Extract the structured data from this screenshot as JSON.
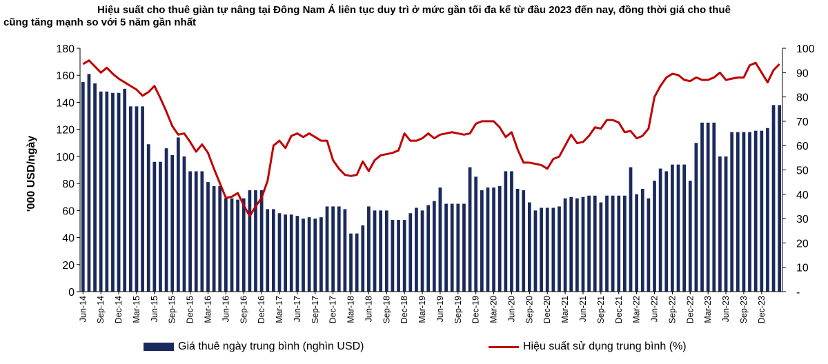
{
  "title": {
    "line1": "Hiệu suất cho thuê giàn tự nâng tại Đông Nam Á liên tục duy trì ở mức gần tối đa kể từ đầu 2023 đến nay, đồng thời giá cho thuê",
    "line2": "cũng tăng mạnh so với 5 năm gần nhất"
  },
  "chart_data": {
    "type": "bar",
    "title": "Hiệu suất cho thuê giàn tự nâng tại Đông Nam Á liên tục duy trì ở mức gần tối đa kể từ đầu 2023 đến nay, đồng thời giá cho thuê cũng tăng mạnh so với 5 năm gần nhất",
    "ylabel": "'000 USD/ngày",
    "ylim": [
      0,
      180
    ],
    "y_ticks": [
      "0",
      "20",
      "40",
      "60",
      "80",
      "100",
      "120",
      "140",
      "160",
      "180"
    ],
    "y2lim": [
      0,
      100
    ],
    "y2_ticks": [
      "-",
      "10",
      "20",
      "30",
      "40",
      "50",
      "60",
      "70",
      "80",
      "90",
      "100"
    ],
    "x_ticks": [
      "Jun-14",
      "Sep-14",
      "Dec-14",
      "Mar-15",
      "Jun-15",
      "Sep-15",
      "Dec-15",
      "Mar-16",
      "Jun-16",
      "Sep-16",
      "Dec-16",
      "Mar-17",
      "Jun-17",
      "Sep-17",
      "Dec-17",
      "Mar-18",
      "Jun-18",
      "Sep-18",
      "Dec-18",
      "Mar-19",
      "Jun-19",
      "Sep-19",
      "Dec-19",
      "Mar-20",
      "Jun-20",
      "Sep-20",
      "Dec-20",
      "Mar-21",
      "Jun-21",
      "Sep-21",
      "Dec-21",
      "Mar-22",
      "Jun-22",
      "Sep-22",
      "Dec-22",
      "Mar-23",
      "Jun-23",
      "Sep-23",
      "Dec-23"
    ],
    "categories_start": "Jun-14",
    "categories_end": "Dec-23",
    "grid": false,
    "legend_position": "bottom",
    "series": [
      {
        "name": "Giá thuê ngày trung bình (nghìn USD)",
        "type": "bar",
        "axis": "left",
        "color": "#1b2a5c",
        "values": [
          155,
          161,
          154,
          148,
          148,
          147,
          147,
          150,
          137,
          137,
          137,
          109,
          96,
          96,
          106,
          101,
          114,
          100,
          89,
          89,
          89,
          81,
          78,
          78,
          69,
          69,
          68,
          69,
          75,
          75,
          75,
          61,
          61,
          58,
          57,
          57,
          56,
          54,
          55,
          54,
          55,
          63,
          63,
          63,
          61,
          43,
          43,
          49,
          63,
          60,
          60,
          60,
          53,
          53,
          53,
          58,
          62,
          60,
          64,
          67,
          77,
          65,
          65,
          65,
          65,
          92,
          85,
          75,
          77,
          77,
          78,
          89,
          89,
          76,
          75,
          66,
          60,
          62,
          62,
          62,
          63,
          69,
          70,
          69,
          70,
          71,
          71,
          66,
          71,
          71,
          71,
          71,
          92,
          72,
          76,
          69,
          82,
          91,
          89,
          94,
          94,
          94,
          82,
          110,
          125,
          125,
          125,
          100,
          100,
          118,
          118,
          118,
          118,
          119,
          119,
          121,
          138,
          138
        ]
      },
      {
        "name": "Hiệu suất sử dụng trung bình (%)",
        "type": "line",
        "axis": "right",
        "color": "#c00000",
        "values": [
          93.5,
          95,
          92.5,
          90,
          92,
          89.5,
          87.5,
          86,
          84.5,
          83,
          80.5,
          82,
          84.5,
          79.5,
          74,
          68,
          64.5,
          65,
          61.5,
          57.5,
          60.5,
          57,
          50.5,
          44.5,
          38.5,
          39,
          40.5,
          35.5,
          31,
          35,
          38.5,
          45.5,
          60,
          62,
          59,
          64,
          65,
          63.5,
          65,
          63.5,
          62,
          62,
          54,
          50.5,
          48,
          47.5,
          48,
          53.5,
          49.5,
          54,
          56,
          56.5,
          57,
          58,
          65,
          62,
          62,
          63,
          65,
          63,
          64.5,
          65,
          65.5,
          65,
          64.5,
          65,
          69,
          70,
          70,
          70,
          67.5,
          63.5,
          65.5,
          58.5,
          53,
          53,
          52.5,
          52,
          50.5,
          54.5,
          55.5,
          60,
          64.5,
          61,
          61.5,
          64,
          67.5,
          67,
          70.5,
          70.5,
          69.5,
          65.5,
          66,
          63,
          64,
          67,
          80,
          84.5,
          88,
          89.5,
          89,
          87,
          86.5,
          88,
          87,
          87,
          88,
          90,
          87,
          87.5,
          88,
          88,
          93,
          94,
          90,
          86,
          91,
          93.5
        ]
      }
    ]
  }
}
